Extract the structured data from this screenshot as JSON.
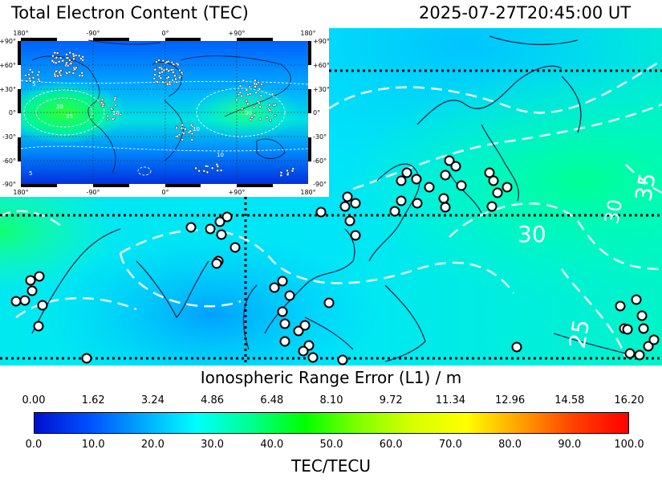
{
  "header": {
    "title": "Total Electron Content (TEC)",
    "timestamp": "2025-07-27T20:45:00 UT"
  },
  "main_map": {
    "region": "East & South Asia, Western Pacific",
    "contour_labels": [
      "30",
      "30",
      "25",
      "35"
    ]
  },
  "inset_map": {
    "lon_labels": [
      "180°",
      "-90°",
      "0°",
      "+90°",
      "180°"
    ],
    "lat_labels": [
      "+90°",
      "+60°",
      "+30°",
      "0°",
      "-30°",
      "-60°",
      "-90°"
    ],
    "contour_labels": [
      "5",
      "10",
      "15",
      "20",
      "25",
      "30",
      "5",
      "10"
    ]
  },
  "colorbar": {
    "top_label": "Ionospheric Range Error (L1) / m",
    "top_ticks": [
      "0.00",
      "1.62",
      "3.24",
      "4.86",
      "6.48",
      "8.10",
      "9.72",
      "11.34",
      "12.96",
      "14.58",
      "16.20"
    ],
    "bottom_ticks": [
      "0.0",
      "10.0",
      "20.0",
      "30.0",
      "40.0",
      "50.0",
      "60.0",
      "70.0",
      "80.0",
      "90.0",
      "100.0"
    ],
    "bottom_label": "TEC/TECU",
    "colors": [
      "#0010d0",
      "#0050ff",
      "#00a8ff",
      "#00ffff",
      "#00ff90",
      "#00ff00",
      "#80ff00",
      "#d8ff00",
      "#ffff00",
      "#ffa000",
      "#ff4000",
      "#ff0000"
    ]
  }
}
